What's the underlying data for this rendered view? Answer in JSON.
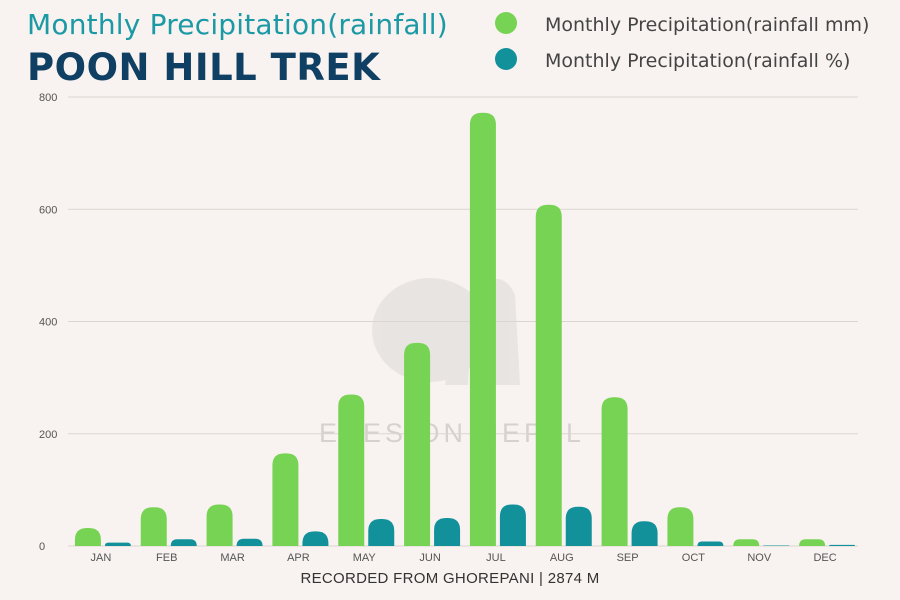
{
  "header": {
    "subtitle": "Monthly Precipitation(rainfall)",
    "title": "POON HILL TREK"
  },
  "watermark": {
    "text": "EYES ON NEPAL"
  },
  "chart_data": {
    "type": "bar",
    "categories": [
      "JAN",
      "FEB",
      "MAR",
      "APR",
      "MAY",
      "JUN",
      "JUL",
      "AUG",
      "SEP",
      "OCT",
      "NOV",
      "DEC"
    ],
    "series": [
      {
        "name": "Monthly Precipitation(rainfall mm)",
        "color": "#77d353",
        "values": [
          32,
          69,
          74,
          165,
          270,
          362,
          772,
          608,
          265,
          69,
          12,
          12
        ]
      },
      {
        "name": "Monthly Precipitation(rainfall %)",
        "color": "#12919a",
        "values": [
          6,
          12,
          13,
          26,
          48,
          50,
          74,
          70,
          44,
          8,
          1,
          2
        ]
      }
    ],
    "ylim": [
      0,
      800
    ],
    "yticks": [
      0,
      200,
      400,
      600,
      800
    ],
    "grid": true,
    "legend_position": "top-right",
    "xlabel": "RECORDED FROM GHOREPANI | 2874 M"
  }
}
